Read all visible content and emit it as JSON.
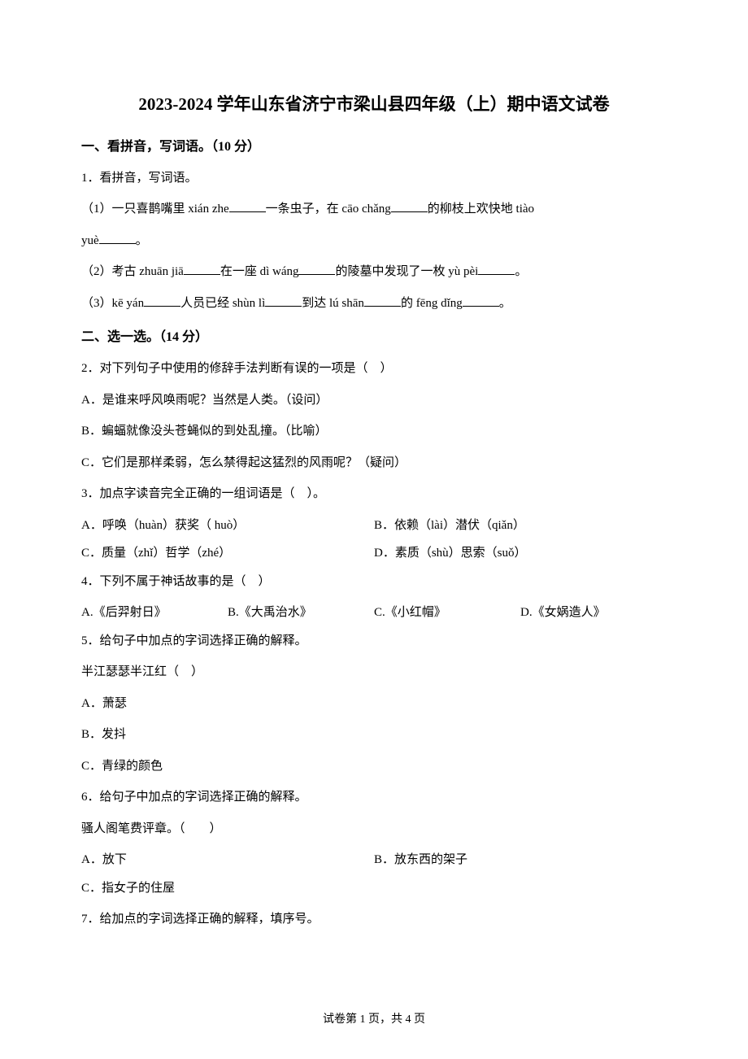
{
  "title": "2023-2024 学年山东省济宁市梁山县四年级（上）期中语文试卷",
  "section1": {
    "header": "一、看拼音，写词语。（10 分）",
    "q1_stem": "1．看拼音，写词语。",
    "q1_1_a": "（1）一只喜鹊嘴里 xián zhe",
    "q1_1_b": "一条虫子，在 cāo chǎng",
    "q1_1_c": "的柳枝上欢快地 tiào",
    "q1_1_d": "yuè",
    "q1_1_e": "。",
    "q1_2_a": "（2）考古 zhuān jiā",
    "q1_2_b": "在一座 dì wáng",
    "q1_2_c": "的陵墓中发现了一枚 yù pèi",
    "q1_2_d": "。",
    "q1_3_a": "（3）kē yán",
    "q1_3_b": "人员已经 shùn lì",
    "q1_3_c": "到达 lú shān",
    "q1_3_d": "的 fēng dǐng",
    "q1_3_e": "。"
  },
  "section2": {
    "header": "二、选一选。（14 分）",
    "q2_stem": "2．对下列句子中使用的修辞手法判断有误的一项是（　）",
    "q2_a": "A．是谁来呼风唤雨呢？当然是人类。（设问）",
    "q2_b": "B．蝙蝠就像没头苍蝇似的到处乱撞。（比喻）",
    "q2_c": "C．它们是那样柔弱，怎么禁得起这猛烈的风雨呢？（疑问）",
    "q3_stem": "3．加点字读音完全正确的一组词语是（　）。",
    "q3_a": "A．呼唤（huàn）获奖（ huò）",
    "q3_b": "B．依赖（lài）潜伏（qiǎn）",
    "q3_c": "C．质量（zhǐ）哲学（zhé）",
    "q3_d": "D．素质（shù）思索（suǒ）",
    "q4_stem": "4．下列不属于神话故事的是（　）",
    "q4_a": "A.《后羿射日》",
    "q4_b": "B.《大禹治水》",
    "q4_c": "C.《小红帽》",
    "q4_d": "D.《女娲造人》",
    "q5_stem": "5．给句子中加点的字词选择正确的解释。",
    "q5_line": "半江瑟瑟半江红（　）",
    "q5_a": "A．萧瑟",
    "q5_b": "B．发抖",
    "q5_c": "C．青绿的颜色",
    "q6_stem": "6．给句子中加点的字词选择正确的解释。",
    "q6_line": "骚人阁笔费评章。（　　）",
    "q6_a": "A．放下",
    "q6_b": "B．放东西的架子",
    "q6_c": "C．指女子的住屋",
    "q7_stem": "7．给加点的字词选择正确的解释，填序号。"
  },
  "footer": "试卷第 1 页，共 4 页"
}
